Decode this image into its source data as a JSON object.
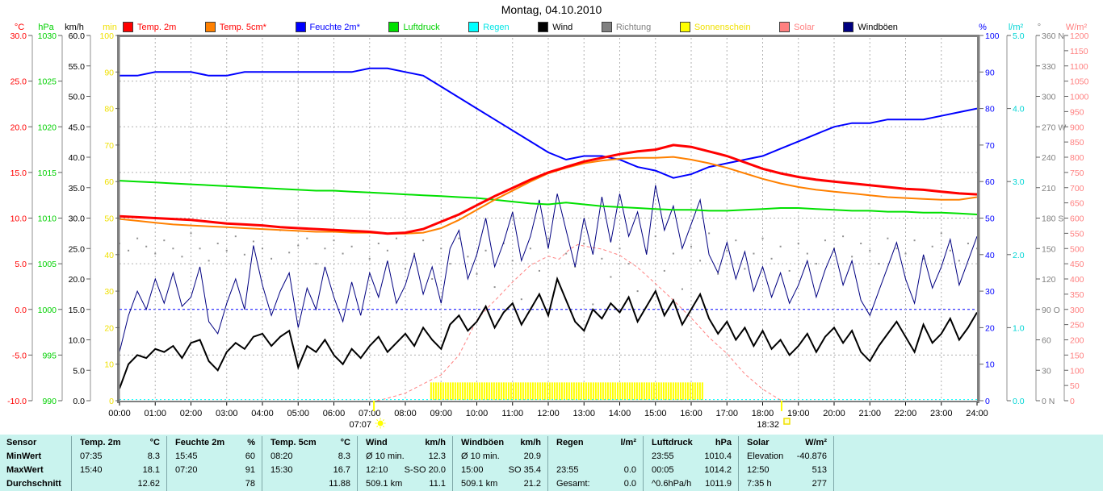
{
  "title": "Montag, 04.10.2010",
  "colors": {
    "temp2m": "#ff0000",
    "temp5cm": "#ff8000",
    "humidity": "#0000ff",
    "pressure": "#00e000",
    "rain": "#00ffff",
    "wind": "#000000",
    "direction": "#909090",
    "sunshine": "#ffff00",
    "solar": "#ff8080",
    "gusts": "#000080",
    "grid": "#b0b0b0",
    "border": "#808080",
    "table_bg": "#c9f3ee",
    "frost_line": "#0000ff"
  },
  "legend": {
    "items": [
      {
        "label": "Temp. 2m",
        "swatch": "#ff0000",
        "text": "#ff0000"
      },
      {
        "label": "Temp. 5cm*",
        "swatch": "#ff8000",
        "text": "#ff0000"
      },
      {
        "label": "Feuchte 2m*",
        "swatch": "#0000ff",
        "text": "#0000ff"
      },
      {
        "label": "Luftdruck",
        "swatch": "#00e000",
        "text": "#00d000"
      },
      {
        "label": "Regen",
        "swatch": "#00ffff",
        "text": "#00e5e5"
      },
      {
        "label": "Wind",
        "swatch": "#000000",
        "text": "#000000"
      },
      {
        "label": "Richtung",
        "swatch": "#808080",
        "text": "#808080"
      },
      {
        "label": "Sonnenschein",
        "swatch": "#ffff00",
        "text": "#f0e000"
      },
      {
        "label": "Solar",
        "swatch": "#ff8080",
        "text": "#ff8080"
      },
      {
        "label": "Windböen",
        "swatch": "#000080",
        "text": "#000000"
      }
    ]
  },
  "chart_data": {
    "type": "line",
    "title": "Montag, 04.10.2010",
    "x_ticks": [
      "00:00",
      "01:00",
      "02:00",
      "03:00",
      "04:00",
      "05:00",
      "06:00",
      "07:00",
      "08:00",
      "09:00",
      "10:00",
      "11:00",
      "12:00",
      "13:00",
      "14:00",
      "15:00",
      "16:00",
      "17:00",
      "18:00",
      "19:00",
      "20:00",
      "21:00",
      "22:00",
      "23:00",
      "24:00"
    ],
    "axes": [
      {
        "unit": "°C",
        "unit_x": 24,
        "x": 40,
        "side": "left",
        "color": "#ff0000",
        "ticks": [
          "30.0",
          "25.0",
          "20.0",
          "15.0",
          "10.0",
          "5.0",
          "0.0",
          "-5.0",
          "-10.0"
        ]
      },
      {
        "unit": "hPa",
        "unit_x": 57,
        "x": 77,
        "side": "left",
        "color": "#00d000",
        "ticks": [
          "1030",
          "1025",
          "1020",
          "1015",
          "1010",
          "1005",
          "1000",
          "995",
          "990"
        ]
      },
      {
        "unit": "km/h",
        "unit_x": 92,
        "x": 112,
        "side": "left",
        "color": "#000000",
        "ticks": [
          "60.0",
          "55.0",
          "50.0",
          "45.0",
          "40.0",
          "35.0",
          "30.0",
          "25.0",
          "20.0",
          "15.0",
          "10.0",
          "5.0",
          "0.0"
        ]
      },
      {
        "unit": "min",
        "unit_x": 136,
        "x": 148,
        "side": "left",
        "color": "#f0e000",
        "ticks": [
          "100",
          "90",
          "80",
          "70",
          "60",
          "50",
          "40",
          "30",
          "20",
          "10",
          "0"
        ]
      },
      {
        "unit": "%",
        "unit_x": 1217,
        "x": 1213,
        "side": "right",
        "color": "#0000ff",
        "ticks": [
          "100",
          "90",
          "80",
          "70",
          "60",
          "50",
          "40",
          "30",
          "20",
          "10",
          "0"
        ]
      },
      {
        "unit": "l/m²",
        "unit_x": 1258,
        "x": 1247,
        "side": "right",
        "color": "#00d5d5",
        "ticks": [
          "5.0",
          "4.0",
          "3.0",
          "2.0",
          "1.0",
          "0.0"
        ]
      },
      {
        "unit": "°",
        "unit_x": 1287,
        "x": 1283,
        "side": "right",
        "color": "#808080",
        "ticks": [
          "360 N",
          "330",
          "300",
          "270 W",
          "240",
          "210",
          "180 S",
          "150",
          "120",
          "90 O",
          "60",
          "30",
          "0 N"
        ]
      },
      {
        "unit": "W/m²",
        "unit_x": 1333,
        "x": 1318,
        "side": "right",
        "color": "#ff8080",
        "ticks": [
          "1200",
          "1150",
          "1100",
          "1050",
          "1000",
          "950",
          "900",
          "850",
          "800",
          "750",
          "700",
          "650",
          "600",
          "550",
          "500",
          "450",
          "400",
          "350",
          "300",
          "250",
          "200",
          "150",
          "100",
          "50",
          "0"
        ]
      }
    ],
    "frost_line": {
      "axis_top": 30,
      "axis_bottom": -10,
      "value": 0,
      "color": "#0000ff"
    },
    "sun": {
      "sunrise": {
        "time": "07:07",
        "h": 7.12
      },
      "sunset": {
        "time": "18:32",
        "h": 18.53
      }
    },
    "series": [
      {
        "name": "Richtung",
        "type": "dots",
        "color": "#909090",
        "top": 360,
        "bottom": 0,
        "step_h": 0.25,
        "values": [
          155,
          148,
          160,
          152,
          145,
          158,
          150,
          142,
          165,
          150,
          138,
          155,
          148,
          162,
          144,
          157,
          150,
          140,
          168,
          146,
          153,
          160,
          135,
          150,
          158,
          145,
          152,
          166,
          140,
          155,
          148,
          160,
          130,
          145,
          158,
          120,
          150,
          135,
          160,
          142,
          125,
          148,
          112,
          155,
          138,
          100,
          150,
          128,
          160,
          118,
          145,
          132,
          155,
          95,
          140,
          122,
          150,
          135,
          108,
          148,
          162,
          128,
          145,
          110,
          152,
          138,
          165,
          125,
          148,
          158,
          130,
          145,
          160,
          140,
          152,
          128,
          155,
          145,
          135,
          158,
          150,
          162,
          142,
          155,
          148,
          135,
          160,
          150,
          145,
          158,
          140,
          152,
          165,
          148,
          138,
          155,
          150
        ]
      },
      {
        "name": "Solar",
        "type": "pairs",
        "color": "#ff8080",
        "width": 1,
        "dash": "4,3",
        "top": 1200,
        "bottom": 0,
        "points": [
          [
            7.2,
            0
          ],
          [
            7.5,
            8
          ],
          [
            8.0,
            25
          ],
          [
            8.5,
            55
          ],
          [
            9.0,
            85
          ],
          [
            9.5,
            150
          ],
          [
            10.0,
            265
          ],
          [
            10.3,
            305
          ],
          [
            10.6,
            340
          ],
          [
            11.0,
            390
          ],
          [
            11.5,
            445
          ],
          [
            12.0,
            475
          ],
          [
            12.3,
            465
          ],
          [
            12.6,
            498
          ],
          [
            12.83,
            513
          ],
          [
            13.0,
            508
          ],
          [
            13.5,
            498
          ],
          [
            14.0,
            478
          ],
          [
            14.5,
            438
          ],
          [
            15.0,
            385
          ],
          [
            15.5,
            330
          ],
          [
            16.0,
            272
          ],
          [
            16.5,
            208
          ],
          [
            17.0,
            155
          ],
          [
            17.5,
            88
          ],
          [
            18.0,
            38
          ],
          [
            18.53,
            0
          ]
        ]
      },
      {
        "name": "Sonnenschein",
        "type": "comb",
        "color": "#ffff00",
        "top": 100,
        "bottom": 0,
        "bar_value": 5,
        "start_h": 8.72,
        "end_h": 16.35
      },
      {
        "name": "Regen",
        "type": "pairs",
        "color": "#00ffff",
        "width": 1,
        "dash": "2,3",
        "top": 5,
        "bottom": 0,
        "points": [
          [
            0,
            0.015
          ],
          [
            24,
            0.015
          ]
        ]
      },
      {
        "name": "Windböen",
        "type": "line",
        "color": "#000080",
        "width": 1,
        "top": 60,
        "bottom": 0,
        "step_h": 0.25,
        "values": [
          8.0,
          14.0,
          18.0,
          15.0,
          20.0,
          16.0,
          21.0,
          15.5,
          17.0,
          22.0,
          13.0,
          11.0,
          16.0,
          20.0,
          15.0,
          25.5,
          19.0,
          14.0,
          18.0,
          21.0,
          12.0,
          18.5,
          15.0,
          22.0,
          17.0,
          13.0,
          19.5,
          14.0,
          21.0,
          17.0,
          23.0,
          16.0,
          19.0,
          24.0,
          17.5,
          22.0,
          16.0,
          25.0,
          28.0,
          20.0,
          24.0,
          30.0,
          22.0,
          26.0,
          31.0,
          23.0,
          27.0,
          33.0,
          25.0,
          34.0,
          28.0,
          22.0,
          30.0,
          24.0,
          33.5,
          26.0,
          34.0,
          27.0,
          31.0,
          24.0,
          35.4,
          28.0,
          32.0,
          25.0,
          29.0,
          33.0,
          24.0,
          21.0,
          26.0,
          20.0,
          24.5,
          18.0,
          22.0,
          17.0,
          21.0,
          16.0,
          19.0,
          23.0,
          17.0,
          21.5,
          25.0,
          19.0,
          23.0,
          16.5,
          14.0,
          18.0,
          22.0,
          26.0,
          20.0,
          16.0,
          24.0,
          18.5,
          22.0,
          26.5,
          19.0,
          23.0,
          27.0
        ]
      },
      {
        "name": "Wind",
        "type": "line",
        "color": "#000000",
        "width": 2,
        "top": 60,
        "bottom": 0,
        "step_h": 0.25,
        "values": [
          2.0,
          6.0,
          7.5,
          7.0,
          8.5,
          8.0,
          9.0,
          7.0,
          9.5,
          10.0,
          6.5,
          5.0,
          8.0,
          9.5,
          8.5,
          10.5,
          11.0,
          9.0,
          10.5,
          11.5,
          5.5,
          9.0,
          8.0,
          10.0,
          7.5,
          6.0,
          8.5,
          7.0,
          9.0,
          10.5,
          8.0,
          9.5,
          11.0,
          9.0,
          12.0,
          10.0,
          8.5,
          12.5,
          14.0,
          11.5,
          13.0,
          15.5,
          12.0,
          14.5,
          16.0,
          12.5,
          15.0,
          17.5,
          14.0,
          20.0,
          16.5,
          13.0,
          11.5,
          15.0,
          13.5,
          16.0,
          14.5,
          17.0,
          13.0,
          15.5,
          18.0,
          14.0,
          16.5,
          12.5,
          15.0,
          17.5,
          13.5,
          11.0,
          13.0,
          10.0,
          12.0,
          9.0,
          11.5,
          8.5,
          10.0,
          7.5,
          9.0,
          11.0,
          8.0,
          10.5,
          12.0,
          9.5,
          11.5,
          8.0,
          6.5,
          9.0,
          11.0,
          13.0,
          10.5,
          8.0,
          12.5,
          9.5,
          11.0,
          13.5,
          10.0,
          12.0,
          14.5
        ]
      },
      {
        "name": "Luftdruck",
        "type": "line",
        "color": "#00e000",
        "width": 2,
        "top": 1030,
        "bottom": 990,
        "step_h": 0.5,
        "values": [
          1014.1,
          1014.0,
          1013.9,
          1013.8,
          1013.7,
          1013.6,
          1013.5,
          1013.4,
          1013.3,
          1013.2,
          1013.1,
          1013.0,
          1013.0,
          1012.9,
          1012.8,
          1012.7,
          1012.6,
          1012.5,
          1012.4,
          1012.3,
          1012.2,
          1012.0,
          1011.8,
          1011.6,
          1011.5,
          1011.7,
          1011.5,
          1011.3,
          1011.2,
          1011.1,
          1011.0,
          1010.9,
          1010.9,
          1010.8,
          1010.8,
          1010.9,
          1011.0,
          1011.1,
          1011.1,
          1011.0,
          1010.9,
          1010.8,
          1010.8,
          1010.7,
          1010.7,
          1010.6,
          1010.6,
          1010.5,
          1010.4
        ]
      },
      {
        "name": "Feuchte 2m",
        "type": "line",
        "color": "#0000ff",
        "width": 2,
        "top": 100,
        "bottom": 0,
        "step_h": 0.5,
        "values": [
          89,
          89,
          90,
          90,
          90,
          89,
          89,
          90,
          90,
          90,
          90,
          90,
          90,
          90,
          91,
          91,
          90,
          89,
          86,
          83,
          80,
          77,
          74,
          71,
          68,
          66,
          67,
          67,
          66,
          64,
          63,
          61,
          62,
          64,
          65,
          66,
          67,
          69,
          71,
          73,
          75,
          76,
          76,
          77,
          77,
          77,
          78,
          79,
          80
        ]
      },
      {
        "name": "Temp. 5cm",
        "type": "line",
        "color": "#ff8000",
        "width": 2,
        "top": 30,
        "bottom": -10,
        "step_h": 0.5,
        "values": [
          9.9,
          9.7,
          9.5,
          9.3,
          9.2,
          9.1,
          9.0,
          8.9,
          8.8,
          8.7,
          8.6,
          8.5,
          8.5,
          8.4,
          8.4,
          8.3,
          8.3,
          8.4,
          8.9,
          9.8,
          10.9,
          12.0,
          13.0,
          14.0,
          14.9,
          15.5,
          16.0,
          16.3,
          16.5,
          16.6,
          16.6,
          16.7,
          16.4,
          16.0,
          15.5,
          14.9,
          14.3,
          13.8,
          13.4,
          13.1,
          12.9,
          12.7,
          12.5,
          12.3,
          12.2,
          12.1,
          12.0,
          12.0,
          12.3
        ]
      },
      {
        "name": "Temp. 2m",
        "type": "line",
        "color": "#ff0000",
        "width": 3,
        "top": 30,
        "bottom": -10,
        "step_h": 0.5,
        "values": [
          10.2,
          10.1,
          10.0,
          9.9,
          9.8,
          9.6,
          9.4,
          9.3,
          9.2,
          9.0,
          8.9,
          8.8,
          8.7,
          8.6,
          8.5,
          8.3,
          8.4,
          8.8,
          9.6,
          10.4,
          11.4,
          12.4,
          13.3,
          14.2,
          15.0,
          15.6,
          16.2,
          16.6,
          17.0,
          17.3,
          17.5,
          18.0,
          17.8,
          17.3,
          16.8,
          16.1,
          15.4,
          14.9,
          14.5,
          14.2,
          14.0,
          13.8,
          13.6,
          13.4,
          13.2,
          13.1,
          12.9,
          12.7,
          12.6
        ]
      }
    ]
  },
  "table": {
    "row_labels": [
      "Sensor",
      "MinWert",
      "MaxWert",
      "Durchschnitt"
    ],
    "columns": [
      {
        "name": "Temp. 2m",
        "unit": "°C",
        "rows": [
          [
            "07:35",
            "8.3"
          ],
          [
            "15:40",
            "18.1"
          ],
          [
            "",
            "12.62"
          ]
        ]
      },
      {
        "name": "Feuchte 2m",
        "unit": "%",
        "rows": [
          [
            "15:45",
            "60"
          ],
          [
            "07:20",
            "91"
          ],
          [
            "",
            "78"
          ]
        ]
      },
      {
        "name": "Temp. 5cm",
        "unit": "°C",
        "rows": [
          [
            "08:20",
            "8.3"
          ],
          [
            "15:30",
            "16.7"
          ],
          [
            "",
            "11.88"
          ]
        ]
      },
      {
        "name": "Wind",
        "unit": "km/h",
        "rows": [
          [
            "Ø 10 min.",
            "12.3"
          ],
          [
            "12:10",
            "S-SO 20.0"
          ],
          [
            "509.1 km",
            "11.1"
          ]
        ]
      },
      {
        "name": "Windböen",
        "unit": "km/h",
        "rows": [
          [
            "Ø 10 min.",
            "20.9"
          ],
          [
            "15:00",
            "SO 35.4"
          ],
          [
            "509.1 km",
            "21.2"
          ]
        ]
      },
      {
        "name": "Regen",
        "unit": "l/m²",
        "rows": [
          [
            "",
            ""
          ],
          [
            "23:55",
            "0.0"
          ],
          [
            "Gesamt:",
            "0.0"
          ]
        ]
      },
      {
        "name": "Luftdruck",
        "unit": "hPa",
        "rows": [
          [
            "23:55",
            "1010.4"
          ],
          [
            "00:05",
            "1014.2"
          ],
          [
            "^0.6hPa/h",
            "1011.9"
          ]
        ]
      },
      {
        "name": "Solar",
        "unit": "W/m²",
        "rows": [
          [
            "Elevation",
            "-40.876"
          ],
          [
            "12:50",
            "513"
          ],
          [
            "7:35 h",
            "277"
          ]
        ]
      }
    ]
  }
}
